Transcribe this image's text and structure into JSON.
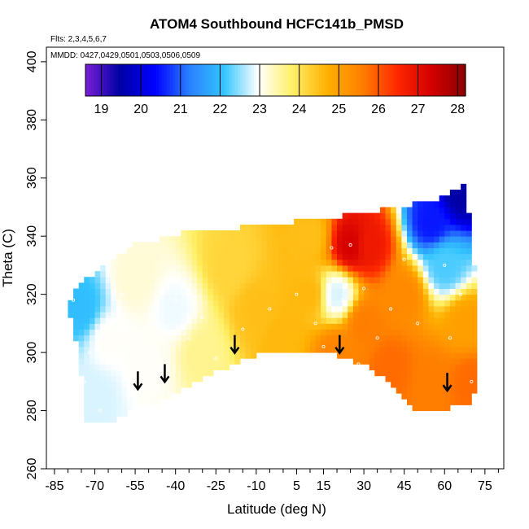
{
  "chart_data": {
    "type": "heatmap",
    "title": "ATOM4 Southbound HCFC141b_PMSD",
    "subtitle_flights": "Flts: 2,3,4,5,6,7",
    "subtitle_dates": "MMDD: 0427,0429,0501,0503,0506,0509",
    "xlabel": "Latitude (deg N)",
    "ylabel": "Theta (C)",
    "xlim": [
      -88,
      82
    ],
    "ylim": [
      260,
      405
    ],
    "x_ticks": [
      -85,
      -70,
      -55,
      -40,
      -25,
      -10,
      5,
      15,
      30,
      45,
      60,
      75
    ],
    "x_tick_labels": [
      "-85",
      "-70",
      "-55",
      "-40",
      "-25",
      "-10",
      "5",
      "15",
      "30",
      "45",
      "60",
      "75"
    ],
    "x_minor_step": 5,
    "y_ticks": [
      260,
      280,
      300,
      320,
      340,
      360,
      380,
      400
    ],
    "y_tick_labels": [
      "260",
      "280",
      "300",
      "320",
      "340",
      "360",
      "380",
      "400"
    ],
    "colorbar": {
      "min": 18.6,
      "max": 28.2,
      "ticks": [
        19,
        20,
        21,
        22,
        23,
        24,
        25,
        26,
        27,
        28
      ],
      "tick_labels": [
        "19",
        "20",
        "21",
        "22",
        "23",
        "24",
        "25",
        "26",
        "27",
        "28"
      ],
      "colors": [
        "#7a1fd6",
        "#0000a3",
        "#0000ff",
        "#2a7fff",
        "#33c4ff",
        "#ffffff",
        "#fff066",
        "#ffb000",
        "#ff8000",
        "#ff2a00",
        "#d40000",
        "#8b0000"
      ]
    },
    "domain_outline": [
      [
        -73,
        276
      ],
      [
        -76,
        300
      ],
      [
        -80,
        315
      ],
      [
        -78,
        322
      ],
      [
        -68,
        329
      ],
      [
        -55,
        337
      ],
      [
        -38,
        341
      ],
      [
        -15,
        343
      ],
      [
        5,
        345
      ],
      [
        30,
        348
      ],
      [
        55,
        352
      ],
      [
        65,
        356
      ],
      [
        68,
        358
      ],
      [
        70,
        340
      ],
      [
        72,
        322
      ],
      [
        72,
        288
      ],
      [
        70,
        283
      ],
      [
        58,
        280
      ],
      [
        48,
        280
      ],
      [
        40,
        290
      ],
      [
        30,
        296
      ],
      [
        18,
        300
      ],
      [
        8,
        300
      ],
      [
        -5,
        301
      ],
      [
        -18,
        296
      ],
      [
        -30,
        291
      ],
      [
        -45,
        283
      ],
      [
        -55,
        281
      ],
      [
        -62,
        277
      ]
    ],
    "field_anchors": [
      {
        "lat": -75,
        "theta": 315,
        "value": 22.0
      },
      {
        "lat": -70,
        "theta": 285,
        "value": 22.8
      },
      {
        "lat": -65,
        "theta": 305,
        "value": 23.0
      },
      {
        "lat": -55,
        "theta": 325,
        "value": 23.2
      },
      {
        "lat": -50,
        "theta": 295,
        "value": 23.0
      },
      {
        "lat": -40,
        "theta": 315,
        "value": 22.9
      },
      {
        "lat": -30,
        "theta": 300,
        "value": 23.6
      },
      {
        "lat": -20,
        "theta": 330,
        "value": 24.2
      },
      {
        "lat": -10,
        "theta": 315,
        "value": 24.5
      },
      {
        "lat": 0,
        "theta": 305,
        "value": 24.6
      },
      {
        "lat": 10,
        "theta": 320,
        "value": 24.6
      },
      {
        "lat": 10,
        "theta": 340,
        "value": 24.5
      },
      {
        "lat": 25,
        "theta": 337,
        "value": 27.3
      },
      {
        "lat": 32,
        "theta": 337,
        "value": 26.8
      },
      {
        "lat": 20,
        "theta": 300,
        "value": 25.5
      },
      {
        "lat": 30,
        "theta": 310,
        "value": 25.6
      },
      {
        "lat": 40,
        "theta": 295,
        "value": 25.8
      },
      {
        "lat": 45,
        "theta": 320,
        "value": 25.4
      },
      {
        "lat": 55,
        "theta": 290,
        "value": 25.6
      },
      {
        "lat": 60,
        "theta": 330,
        "value": 22.2
      },
      {
        "lat": 55,
        "theta": 345,
        "value": 20.5
      },
      {
        "lat": 66,
        "theta": 355,
        "value": 19.5
      },
      {
        "lat": 68,
        "theta": 310,
        "value": 25.0
      },
      {
        "lat": 70,
        "theta": 290,
        "value": 25.8
      },
      {
        "lat": 20,
        "theta": 320,
        "value": 22.8
      }
    ],
    "sample_points": [
      [
        -78,
        318
      ],
      [
        -72,
        300
      ],
      [
        -74,
        290
      ],
      [
        -65,
        312
      ],
      [
        -60,
        320
      ],
      [
        -55,
        300
      ],
      [
        -50,
        310
      ],
      [
        -45,
        295
      ],
      [
        -40,
        318
      ],
      [
        -35,
        305
      ],
      [
        -30,
        312
      ],
      [
        -25,
        298
      ],
      [
        -15,
        308
      ],
      [
        -5,
        315
      ],
      [
        5,
        320
      ],
      [
        12,
        310
      ],
      [
        18,
        336
      ],
      [
        25,
        337
      ],
      [
        22,
        318
      ],
      [
        30,
        322
      ],
      [
        35,
        305
      ],
      [
        40,
        315
      ],
      [
        45,
        332
      ],
      [
        50,
        310
      ],
      [
        60,
        330
      ],
      [
        62,
        305
      ],
      [
        66,
        320
      ],
      [
        70,
        290
      ],
      [
        -68,
        280
      ],
      [
        -58,
        285
      ],
      [
        -42,
        286
      ],
      [
        28,
        296
      ],
      [
        15,
        302
      ]
    ],
    "arrows": [
      -54,
      -44,
      -18,
      21,
      61
    ]
  }
}
